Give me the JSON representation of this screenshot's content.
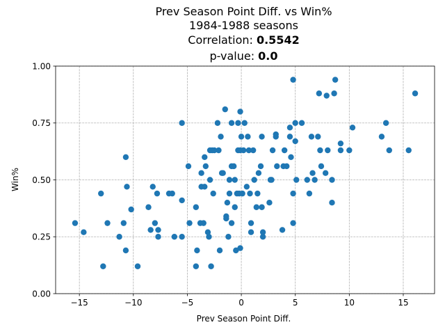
{
  "chart_data": {
    "type": "scatter",
    "title_lines": [
      {
        "text": "Prev Season Point Diff. vs Win%",
        "value": ""
      },
      {
        "text": "1984-1988 seasons",
        "value": ""
      },
      {
        "text": "Correlation: ",
        "value": "0.5542"
      },
      {
        "text": "p-value: ",
        "value": "0.0"
      }
    ],
    "xlabel": "Prev Season Point Diff.",
    "ylabel": "Win%",
    "xlim": [
      -17.2,
      17.9
    ],
    "ylim": [
      0.0,
      1.0
    ],
    "xticks": [
      -15,
      -10,
      -5,
      0,
      5,
      10,
      15
    ],
    "xtick_labels": [
      "−15",
      "−10",
      "−5",
      "0",
      "5",
      "10",
      "15"
    ],
    "yticks": [
      0.0,
      0.25,
      0.5,
      0.75,
      1.0
    ],
    "ytick_labels": [
      "0.00",
      "0.25",
      "0.50",
      "0.75",
      "1.00"
    ],
    "grid": true,
    "marker_color": "#1f77b4",
    "points": [
      [
        -15.4,
        0.31
      ],
      [
        -14.6,
        0.27
      ],
      [
        -13.0,
        0.44
      ],
      [
        -12.8,
        0.12
      ],
      [
        -12.4,
        0.31
      ],
      [
        -11.3,
        0.25
      ],
      [
        -10.9,
        0.31
      ],
      [
        -10.7,
        0.19
      ],
      [
        -10.7,
        0.6
      ],
      [
        -10.6,
        0.47
      ],
      [
        -10.2,
        0.37
      ],
      [
        -9.6,
        0.12
      ],
      [
        -8.6,
        0.38
      ],
      [
        -8.4,
        0.28
      ],
      [
        -8.2,
        0.47
      ],
      [
        -8.0,
        0.31
      ],
      [
        -7.8,
        0.44
      ],
      [
        -7.7,
        0.28
      ],
      [
        -7.7,
        0.25
      ],
      [
        -6.7,
        0.44
      ],
      [
        -6.4,
        0.44
      ],
      [
        -6.2,
        0.25
      ],
      [
        -5.5,
        0.75
      ],
      [
        -5.5,
        0.41
      ],
      [
        -5.5,
        0.25
      ],
      [
        -4.9,
        0.56
      ],
      [
        -4.8,
        0.31
      ],
      [
        -4.2,
        0.38
      ],
      [
        -4.2,
        0.12
      ],
      [
        -4.1,
        0.19
      ],
      [
        -3.8,
        0.31
      ],
      [
        -3.7,
        0.53
      ],
      [
        -3.7,
        0.47
      ],
      [
        -3.5,
        0.31
      ],
      [
        -3.4,
        0.47
      ],
      [
        -3.4,
        0.6
      ],
      [
        -3.3,
        0.56
      ],
      [
        -3.1,
        0.27
      ],
      [
        -3.0,
        0.25
      ],
      [
        -2.9,
        0.5
      ],
      [
        -2.9,
        0.63
      ],
      [
        -2.8,
        0.12
      ],
      [
        -2.7,
        0.63
      ],
      [
        -2.6,
        0.44
      ],
      [
        -2.5,
        0.63
      ],
      [
        -2.2,
        0.75
      ],
      [
        -2.1,
        0.63
      ],
      [
        -2.0,
        0.19
      ],
      [
        -1.9,
        0.69
      ],
      [
        -1.8,
        0.53
      ],
      [
        -1.7,
        0.53
      ],
      [
        -1.5,
        0.81
      ],
      [
        -1.4,
        0.34
      ],
      [
        -1.4,
        0.33
      ],
      [
        -1.3,
        0.4
      ],
      [
        -1.2,
        0.25
      ],
      [
        -1.1,
        0.5
      ],
      [
        -1.1,
        0.44
      ],
      [
        -0.9,
        0.56
      ],
      [
        -0.9,
        0.75
      ],
      [
        -0.9,
        0.31
      ],
      [
        -0.7,
        0.56
      ],
      [
        -0.6,
        0.5
      ],
      [
        -0.6,
        0.38
      ],
      [
        -0.5,
        0.19
      ],
      [
        -0.4,
        0.44
      ],
      [
        -0.3,
        0.63
      ],
      [
        -0.3,
        0.75
      ],
      [
        -0.2,
        0.44
      ],
      [
        -0.1,
        0.8
      ],
      [
        -0.1,
        0.63
      ],
      [
        -0.1,
        0.2
      ],
      [
        0.0,
        0.69
      ],
      [
        0.1,
        0.44
      ],
      [
        0.2,
        0.63
      ],
      [
        0.3,
        0.75
      ],
      [
        0.5,
        0.47
      ],
      [
        0.6,
        0.69
      ],
      [
        0.7,
        0.63
      ],
      [
        0.8,
        0.44
      ],
      [
        0.9,
        0.31
      ],
      [
        0.9,
        0.27
      ],
      [
        1.1,
        0.63
      ],
      [
        1.2,
        0.5
      ],
      [
        1.4,
        0.38
      ],
      [
        1.5,
        0.44
      ],
      [
        1.6,
        0.53
      ],
      [
        1.8,
        0.56
      ],
      [
        1.9,
        0.69
      ],
      [
        1.9,
        0.38
      ],
      [
        2.0,
        0.27
      ],
      [
        2.0,
        0.25
      ],
      [
        2.6,
        0.4
      ],
      [
        2.7,
        0.5
      ],
      [
        2.8,
        0.5
      ],
      [
        2.9,
        0.63
      ],
      [
        3.2,
        0.7
      ],
      [
        3.2,
        0.69
      ],
      [
        3.3,
        0.56
      ],
      [
        3.8,
        0.28
      ],
      [
        3.9,
        0.56
      ],
      [
        4.0,
        0.63
      ],
      [
        4.2,
        0.56
      ],
      [
        4.5,
        0.73
      ],
      [
        4.5,
        0.69
      ],
      [
        4.6,
        0.6
      ],
      [
        4.8,
        0.94
      ],
      [
        4.8,
        0.44
      ],
      [
        4.8,
        0.31
      ],
      [
        5.0,
        0.75
      ],
      [
        5.0,
        0.67
      ],
      [
        5.1,
        0.5
      ],
      [
        5.6,
        0.75
      ],
      [
        6.1,
        0.5
      ],
      [
        6.3,
        0.44
      ],
      [
        6.5,
        0.69
      ],
      [
        6.6,
        0.53
      ],
      [
        6.8,
        0.5
      ],
      [
        7.1,
        0.69
      ],
      [
        7.2,
        0.88
      ],
      [
        7.3,
        0.63
      ],
      [
        7.4,
        0.56
      ],
      [
        7.8,
        0.53
      ],
      [
        7.9,
        0.87
      ],
      [
        8.0,
        0.63
      ],
      [
        8.4,
        0.5
      ],
      [
        8.4,
        0.4
      ],
      [
        8.6,
        0.88
      ],
      [
        8.7,
        0.94
      ],
      [
        9.2,
        0.66
      ],
      [
        9.2,
        0.63
      ],
      [
        10.0,
        0.63
      ],
      [
        10.3,
        0.73
      ],
      [
        13.0,
        0.69
      ],
      [
        13.4,
        0.75
      ],
      [
        13.7,
        0.63
      ],
      [
        15.5,
        0.63
      ],
      [
        16.1,
        0.88
      ]
    ]
  }
}
